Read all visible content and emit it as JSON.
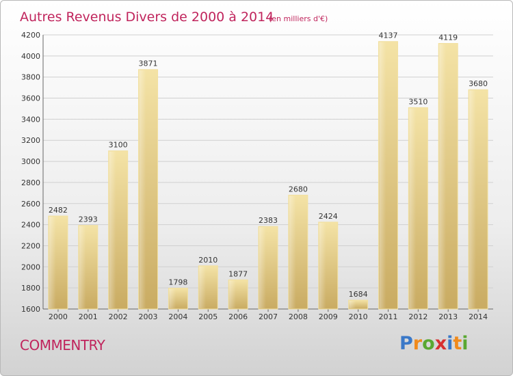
{
  "chart_data": {
    "type": "bar",
    "title": "Autres Revenus Divers de 2000 à 2014",
    "subtitle": "(en milliers d'€)",
    "categories": [
      "2000",
      "2001",
      "2002",
      "2003",
      "2004",
      "2005",
      "2006",
      "2007",
      "2008",
      "2009",
      "2010",
      "2011",
      "2012",
      "2013",
      "2014"
    ],
    "values": [
      2482,
      2393,
      3100,
      3871,
      1798,
      2010,
      1877,
      2383,
      2680,
      2424,
      1684,
      4137,
      3510,
      4119,
      3680
    ],
    "ylim": [
      1600,
      4200
    ],
    "yticks": [
      1600,
      1800,
      2000,
      2200,
      2400,
      2600,
      2800,
      3000,
      3200,
      3400,
      3600,
      3800,
      4000,
      4200
    ],
    "grid": true,
    "bar_color": "#e3c67a",
    "title_color": "#c0245c"
  },
  "footer": {
    "town": "COMMENTRY",
    "brand_letters": [
      "P",
      "r",
      "o",
      "x",
      "i",
      "t",
      "i"
    ],
    "brand_colors": [
      "#3a78c8",
      "#f08a1c",
      "#5aa832",
      "#d83030",
      "#3a78c8",
      "#f08a1c",
      "#5aa832"
    ]
  }
}
